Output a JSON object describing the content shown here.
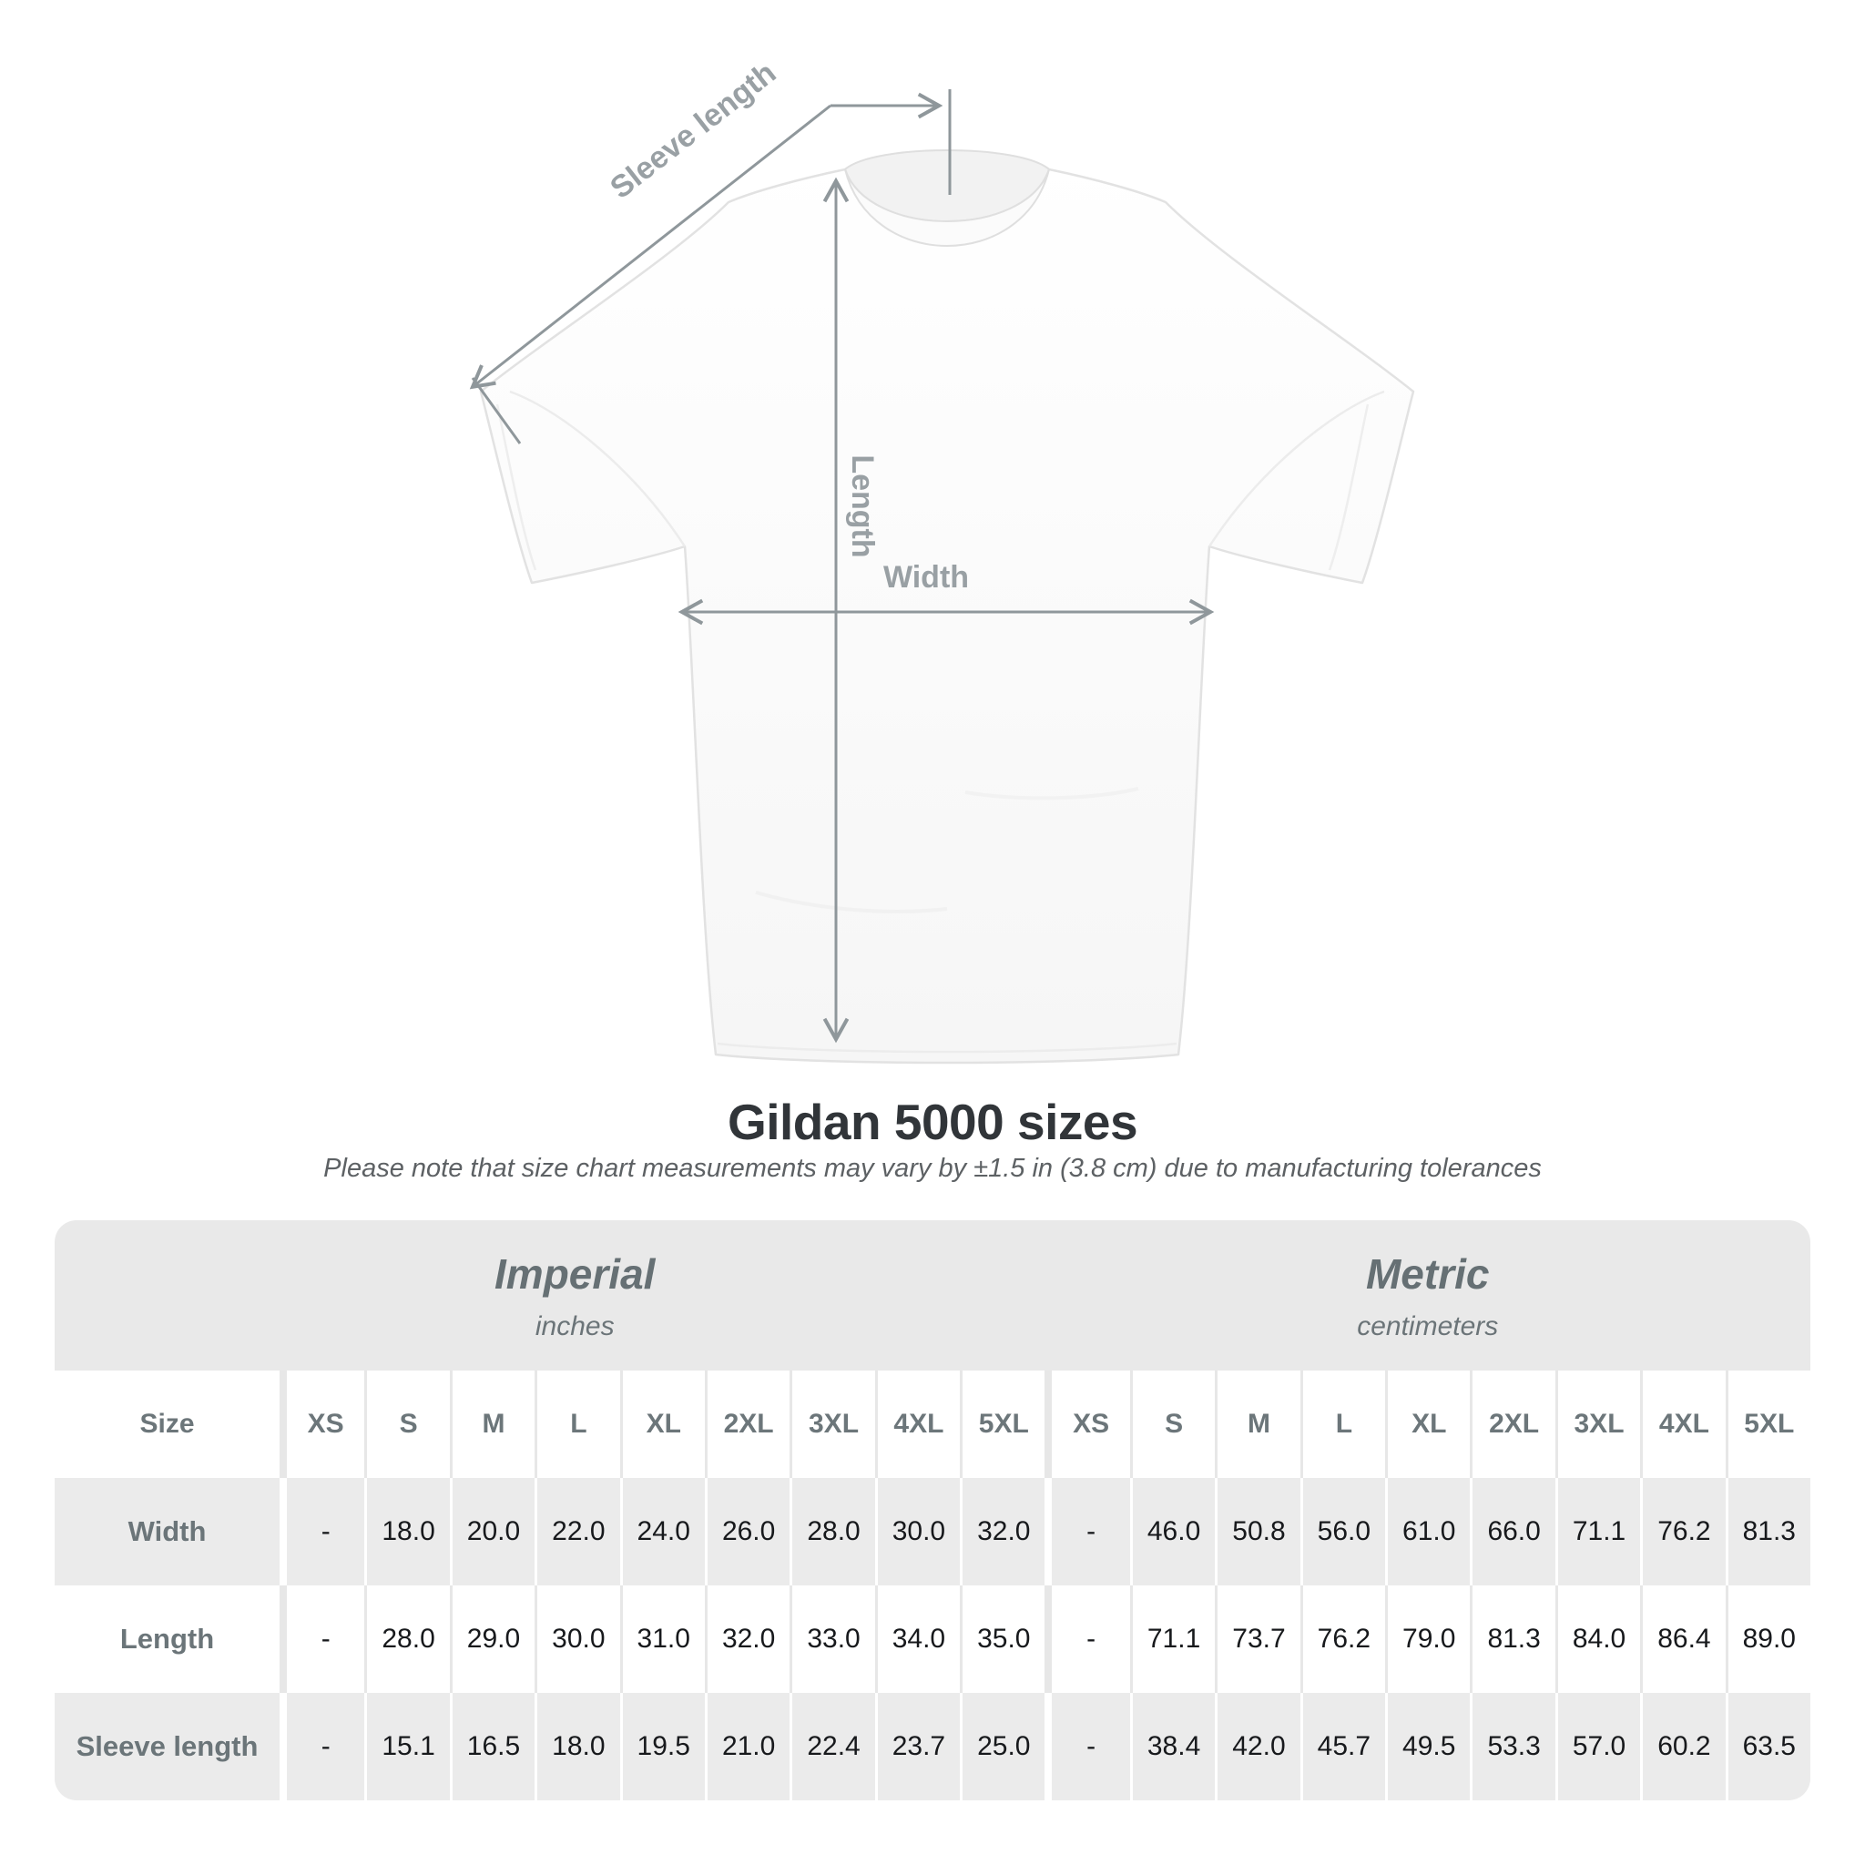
{
  "diagram": {
    "sleeve_length_label": "Sleeve length",
    "length_label": "Length",
    "width_label": "Width",
    "line_color": "#8f979b",
    "label_color": "#99a0a4",
    "shirt_color": "#ffffff"
  },
  "heading": {
    "title": "Gildan 5000 sizes",
    "subtitle": "Please note that size chart measurements may vary by ±1.5 in (3.8 cm) due to manufacturing tolerances"
  },
  "size_table": {
    "size_col_header": "Size",
    "groups": [
      {
        "name": "Imperial",
        "unit": "inches"
      },
      {
        "name": "Metric",
        "unit": "centimeters"
      }
    ],
    "sizes": [
      "XS",
      "S",
      "M",
      "L",
      "XL",
      "2XL",
      "3XL",
      "4XL",
      "5XL"
    ],
    "rows": [
      {
        "label": "Width",
        "imperial": [
          "-",
          "18.0",
          "20.0",
          "22.0",
          "24.0",
          "26.0",
          "28.0",
          "30.0",
          "32.0"
        ],
        "metric": [
          "-",
          "46.0",
          "50.8",
          "56.0",
          "61.0",
          "66.0",
          "71.1",
          "76.2",
          "81.3"
        ]
      },
      {
        "label": "Length",
        "imperial": [
          "-",
          "28.0",
          "29.0",
          "30.0",
          "31.0",
          "32.0",
          "33.0",
          "34.0",
          "35.0"
        ],
        "metric": [
          "-",
          "71.1",
          "73.7",
          "76.2",
          "79.0",
          "81.3",
          "84.0",
          "86.4",
          "89.0"
        ]
      },
      {
        "label": "Sleeve length",
        "imperial": [
          "-",
          "15.1",
          "16.5",
          "18.0",
          "19.5",
          "21.0",
          "22.4",
          "23.7",
          "25.0"
        ],
        "metric": [
          "-",
          "38.4",
          "42.0",
          "45.7",
          "49.5",
          "53.3",
          "57.0",
          "60.2",
          "63.5"
        ]
      }
    ],
    "colors": {
      "band": "#e9e9e9",
      "row_alt": "#ebebeb",
      "header_text": "#6c767a",
      "value_text": "#17191c"
    }
  }
}
